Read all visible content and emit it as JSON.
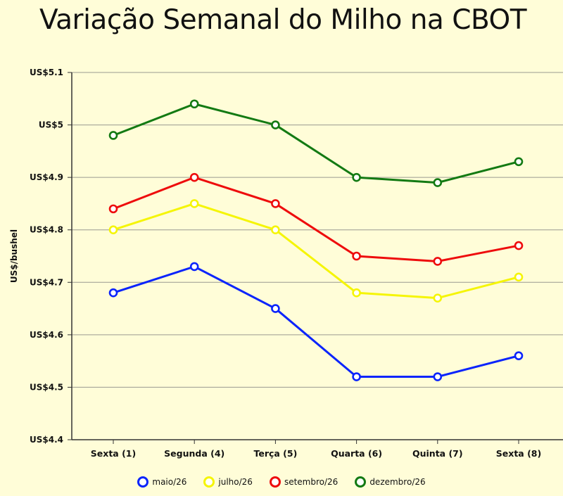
{
  "title": "Variação Semanal do Milho na CBOT",
  "chart_data": {
    "type": "line",
    "categories": [
      "Sexta (1)",
      "Segunda (4)",
      "Terça (5)",
      "Quarta (6)",
      "Quinta (7)",
      "Sexta (8)"
    ],
    "ylabel": "US$/bushel",
    "xlabel": "",
    "ylim": [
      4.4,
      5.1
    ],
    "yticks": [
      4.4,
      4.5,
      4.6,
      4.7,
      4.8,
      4.9,
      5.0,
      5.1
    ],
    "ytick_labels": [
      "US$4.4",
      "US$4.5",
      "US$4.6",
      "US$4.7",
      "US$4.8",
      "US$4.9",
      "US$5",
      "US$5.1"
    ],
    "grid": "horizontal",
    "legend_position": "bottom",
    "series": [
      {
        "name": "maio/26",
        "color": "#0B24FB",
        "values": [
          4.68,
          4.73,
          4.65,
          4.52,
          4.52,
          4.56
        ]
      },
      {
        "name": "julho/26",
        "color": "#F5F506",
        "values": [
          4.8,
          4.85,
          4.8,
          4.68,
          4.67,
          4.71
        ]
      },
      {
        "name": "setembro/26",
        "color": "#EE0C0C",
        "values": [
          4.84,
          4.9,
          4.85,
          4.75,
          4.74,
          4.77
        ]
      },
      {
        "name": "dezembro/26",
        "color": "#137A13",
        "values": [
          4.98,
          5.04,
          5.0,
          4.9,
          4.89,
          4.93
        ]
      }
    ]
  }
}
